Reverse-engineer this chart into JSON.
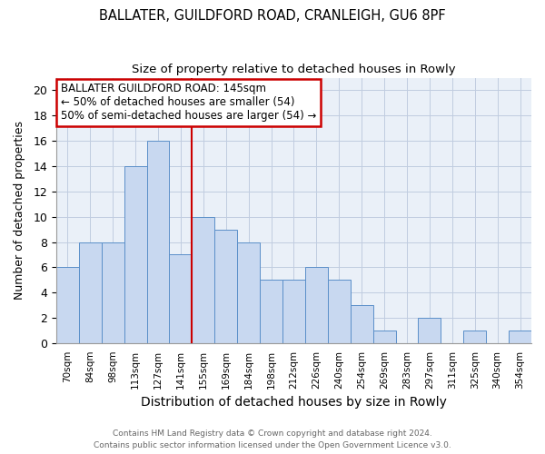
{
  "title1": "BALLATER, GUILDFORD ROAD, CRANLEIGH, GU6 8PF",
  "title2": "Size of property relative to detached houses in Rowly",
  "xlabel": "Distribution of detached houses by size in Rowly",
  "ylabel": "Number of detached properties",
  "categories": [
    "70sqm",
    "84sqm",
    "98sqm",
    "113sqm",
    "127sqm",
    "141sqm",
    "155sqm",
    "169sqm",
    "184sqm",
    "198sqm",
    "212sqm",
    "226sqm",
    "240sqm",
    "254sqm",
    "269sqm",
    "283sqm",
    "297sqm",
    "311sqm",
    "325sqm",
    "340sqm",
    "354sqm"
  ],
  "values": [
    6,
    8,
    8,
    14,
    16,
    7,
    10,
    9,
    8,
    5,
    5,
    6,
    5,
    3,
    1,
    0,
    2,
    0,
    1,
    0,
    1
  ],
  "bar_color": "#c8d8f0",
  "bar_edge_color": "#5b8fc9",
  "vline_x": 5.5,
  "vline_color": "#cc0000",
  "annotation_line1": "BALLATER GUILDFORD ROAD: 145sqm",
  "annotation_line2": "← 50% of detached houses are smaller (54)",
  "annotation_line3": "50% of semi-detached houses are larger (54) →",
  "annotation_box_color": "#ffffff",
  "annotation_box_edge": "#cc0000",
  "ylim": [
    0,
    21
  ],
  "yticks": [
    0,
    2,
    4,
    6,
    8,
    10,
    12,
    14,
    16,
    18,
    20
  ],
  "footer1": "Contains HM Land Registry data © Crown copyright and database right 2024.",
  "footer2": "Contains public sector information licensed under the Open Government Licence v3.0.",
  "fig_bg_color": "#ffffff",
  "ax_bg_color": "#eaf0f8",
  "grid_color": "#c0cce0"
}
